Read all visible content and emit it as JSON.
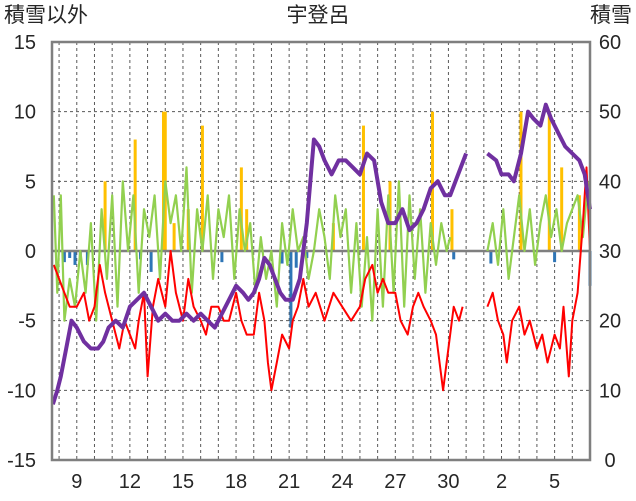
{
  "chart_data": {
    "type": "line",
    "title": "宇登呂",
    "left_axis_label": "積雪以外",
    "right_axis_label": "積雪",
    "left_ylim": [
      -15,
      15
    ],
    "left_ticks": [
      "15",
      "10",
      "5",
      "0",
      "-5",
      "-10",
      "-15"
    ],
    "right_ylim": [
      0,
      60
    ],
    "right_ticks": [
      "60",
      "50",
      "40",
      "30",
      "20",
      "10",
      "0"
    ],
    "x_ticks": [
      "9",
      "12",
      "15",
      "18",
      "21",
      "24",
      "27",
      "30",
      "2",
      "5"
    ],
    "x_tick_days": [
      9,
      12,
      15,
      18,
      21,
      24,
      27,
      30,
      33,
      36
    ],
    "xlim": [
      7.6,
      38.0
    ],
    "grid": {
      "vertical_dashed_every_day": true,
      "horizontal_dashed_every": 5
    },
    "colors": {
      "snow_depth": "#7030a0",
      "temperature_red": "#ff0000",
      "green_series": "#92d050",
      "orange_bars": "#ffc000",
      "blue_bars": "#2e75b6",
      "axis": "#7f7f7f"
    },
    "snow_depth": [
      [
        7.65,
        8
      ],
      [
        7.9,
        10
      ],
      [
        8.1,
        12
      ],
      [
        8.4,
        16
      ],
      [
        8.7,
        20
      ],
      [
        9.0,
        19
      ],
      [
        9.4,
        17
      ],
      [
        9.8,
        16
      ],
      [
        10.2,
        16
      ],
      [
        10.5,
        17
      ],
      [
        10.8,
        19
      ],
      [
        11.2,
        20
      ],
      [
        11.6,
        19
      ],
      [
        12.0,
        22
      ],
      [
        12.4,
        23
      ],
      [
        12.8,
        24
      ],
      [
        13.2,
        22
      ],
      [
        13.6,
        20
      ],
      [
        14.0,
        21
      ],
      [
        14.4,
        20
      ],
      [
        14.8,
        20
      ],
      [
        15.2,
        21
      ],
      [
        15.6,
        20
      ],
      [
        16.0,
        21
      ],
      [
        16.4,
        20
      ],
      [
        16.8,
        19
      ],
      [
        17.2,
        21
      ],
      [
        17.6,
        23
      ],
      [
        18.0,
        25
      ],
      [
        18.4,
        24
      ],
      [
        18.7,
        23
      ],
      [
        19.0,
        24
      ],
      [
        19.3,
        26
      ],
      [
        19.6,
        29
      ],
      [
        19.9,
        28
      ],
      [
        20.2,
        26
      ],
      [
        20.5,
        24
      ],
      [
        20.8,
        23
      ],
      [
        21.2,
        23
      ],
      [
        21.6,
        26
      ],
      [
        22.0,
        34
      ],
      [
        22.4,
        46
      ],
      [
        22.7,
        45
      ],
      [
        23.0,
        43
      ],
      [
        23.4,
        41
      ],
      [
        23.8,
        43
      ],
      [
        24.2,
        43
      ],
      [
        24.6,
        42
      ],
      [
        25.0,
        41
      ],
      [
        25.4,
        44
      ],
      [
        25.8,
        43
      ],
      [
        26.2,
        37
      ],
      [
        26.6,
        34
      ],
      [
        27.0,
        34
      ],
      [
        27.4,
        36
      ],
      [
        27.8,
        33
      ],
      [
        28.2,
        34
      ],
      [
        28.6,
        36
      ],
      [
        29.0,
        39
      ],
      [
        29.4,
        40
      ],
      [
        29.8,
        38
      ],
      [
        30.1,
        38
      ],
      [
        30.4,
        40
      ],
      [
        30.7,
        42
      ],
      [
        31.0,
        44
      ],
      null,
      [
        32.2,
        44
      ],
      [
        32.7,
        43
      ],
      [
        33.0,
        41
      ],
      [
        33.4,
        41
      ],
      [
        33.7,
        40
      ],
      [
        34.1,
        44
      ],
      [
        34.5,
        50
      ],
      [
        34.8,
        49
      ],
      [
        35.2,
        48
      ],
      [
        35.5,
        51
      ],
      [
        35.8,
        49
      ],
      [
        36.2,
        47
      ],
      [
        36.6,
        45
      ],
      [
        37.0,
        44
      ],
      [
        37.4,
        43
      ],
      [
        37.7,
        41
      ],
      [
        38.0,
        36
      ]
    ],
    "temperature_red": [
      [
        7.7,
        -1
      ],
      [
        8.0,
        -2
      ],
      [
        8.3,
        -3
      ],
      [
        8.6,
        -4
      ],
      [
        9.0,
        -4
      ],
      [
        9.4,
        -3
      ],
      [
        9.7,
        -5
      ],
      [
        10.0,
        -4
      ],
      [
        10.3,
        -1
      ],
      [
        10.6,
        -3
      ],
      [
        11.0,
        -5
      ],
      [
        11.4,
        -7
      ],
      [
        11.7,
        -5
      ],
      [
        12.0,
        -6
      ],
      [
        12.3,
        -7
      ],
      [
        12.5,
        -5
      ],
      [
        12.8,
        -3
      ],
      [
        13.0,
        -9
      ],
      [
        13.3,
        -4
      ],
      [
        13.6,
        -2
      ],
      [
        14.0,
        -4
      ],
      [
        14.3,
        0
      ],
      [
        14.6,
        -3
      ],
      [
        15.0,
        -5
      ],
      [
        15.3,
        -2
      ],
      [
        15.6,
        -4
      ],
      [
        16.0,
        -5
      ],
      [
        16.3,
        -6
      ],
      [
        16.6,
        -4
      ],
      [
        17.0,
        -4
      ],
      [
        17.3,
        -5
      ],
      [
        17.6,
        -5
      ],
      [
        18.0,
        -3
      ],
      [
        18.3,
        -5
      ],
      [
        18.6,
        -6
      ],
      [
        19.0,
        -6
      ],
      [
        19.3,
        -3
      ],
      [
        19.6,
        -5
      ],
      [
        19.8,
        -8
      ],
      [
        20.0,
        -10
      ],
      [
        20.3,
        -8
      ],
      [
        20.6,
        -6
      ],
      [
        21.0,
        -7
      ],
      [
        21.2,
        -5
      ],
      [
        21.5,
        -4
      ],
      [
        21.8,
        -2
      ],
      [
        22.1,
        -4
      ],
      [
        22.5,
        -3
      ],
      [
        23.0,
        -5
      ],
      [
        23.5,
        -3
      ],
      [
        24.0,
        -4
      ],
      [
        24.5,
        -5
      ],
      [
        25.0,
        -4
      ],
      [
        25.3,
        -2
      ],
      [
        25.7,
        -1
      ],
      [
        26.0,
        -3
      ],
      [
        26.3,
        -2
      ],
      [
        26.6,
        -3
      ],
      [
        27.0,
        -3
      ],
      [
        27.3,
        -5
      ],
      [
        27.7,
        -6
      ],
      [
        28.0,
        -4
      ],
      [
        28.3,
        -3
      ],
      [
        28.6,
        -4
      ],
      [
        29.0,
        -5
      ],
      [
        29.3,
        -6
      ],
      [
        29.7,
        -10
      ],
      [
        30.0,
        -7
      ],
      [
        30.3,
        -4
      ],
      [
        30.6,
        -5
      ],
      [
        30.8,
        -4
      ],
      null,
      [
        32.2,
        -4
      ],
      [
        32.5,
        -3
      ],
      [
        32.8,
        -5
      ],
      [
        33.1,
        -6
      ],
      [
        33.3,
        -8
      ],
      [
        33.6,
        -5
      ],
      [
        34.0,
        -4
      ],
      [
        34.3,
        -6
      ],
      [
        34.6,
        -5
      ],
      [
        35.0,
        -7
      ],
      [
        35.3,
        -6
      ],
      [
        35.6,
        -8
      ],
      [
        36.0,
        -6
      ],
      [
        36.3,
        -7
      ],
      [
        36.5,
        -4
      ],
      [
        36.8,
        -9
      ],
      [
        37.0,
        -5
      ],
      [
        37.3,
        -3
      ],
      [
        37.6,
        2
      ],
      [
        37.8,
        6
      ],
      [
        38.0,
        0
      ]
    ],
    "green_series": [
      [
        7.7,
        4
      ],
      [
        7.9,
        -3
      ],
      [
        8.1,
        4
      ],
      [
        8.3,
        -5
      ],
      [
        8.6,
        -2
      ],
      [
        8.9,
        -4
      ],
      [
        9.2,
        0
      ],
      [
        9.5,
        -3
      ],
      [
        9.8,
        2
      ],
      [
        10.1,
        -5
      ],
      [
        10.4,
        3
      ],
      [
        10.7,
        -2
      ],
      [
        11.0,
        4
      ],
      [
        11.3,
        -4
      ],
      [
        11.6,
        5
      ],
      [
        11.9,
        0
      ],
      [
        12.2,
        4
      ],
      [
        12.5,
        -3
      ],
      [
        12.8,
        3
      ],
      [
        13.1,
        1
      ],
      [
        13.4,
        4
      ],
      [
        13.7,
        -2
      ],
      [
        14.0,
        5
      ],
      [
        14.3,
        2
      ],
      [
        14.6,
        4
      ],
      [
        14.9,
        0
      ],
      [
        15.2,
        6
      ],
      [
        15.5,
        -3
      ],
      [
        15.8,
        3
      ],
      [
        16.1,
        0
      ],
      [
        16.4,
        4
      ],
      [
        16.7,
        -2
      ],
      [
        17.0,
        3
      ],
      [
        17.3,
        1
      ],
      [
        17.6,
        4
      ],
      [
        17.9,
        -2
      ],
      [
        18.2,
        3
      ],
      [
        18.5,
        0
      ],
      [
        18.8,
        2
      ],
      [
        19.1,
        -3
      ],
      [
        19.4,
        1
      ],
      [
        19.7,
        -2
      ],
      [
        20.0,
        0
      ],
      [
        20.3,
        -4
      ],
      [
        20.6,
        2
      ],
      [
        20.9,
        -1
      ],
      [
        21.2,
        3
      ],
      [
        21.5,
        0
      ],
      [
        21.8,
        1
      ],
      [
        22.1,
        -2
      ],
      [
        22.4,
        0
      ],
      [
        22.7,
        3
      ],
      [
        23.0,
        1
      ],
      [
        23.3,
        -2
      ],
      [
        23.6,
        4
      ],
      [
        23.9,
        1
      ],
      [
        24.2,
        3
      ],
      [
        24.5,
        -3
      ],
      [
        24.8,
        2
      ],
      [
        25.1,
        -4
      ],
      [
        25.4,
        1
      ],
      [
        25.7,
        -5
      ],
      [
        26.0,
        3
      ],
      [
        26.3,
        -4
      ],
      [
        26.6,
        4
      ],
      [
        26.9,
        -3
      ],
      [
        27.2,
        5
      ],
      [
        27.5,
        -4
      ],
      [
        27.8,
        4
      ],
      [
        28.1,
        -2
      ],
      [
        28.4,
        3
      ],
      [
        28.7,
        -3
      ],
      [
        29.0,
        2
      ],
      [
        29.3,
        -1
      ],
      [
        29.6,
        2
      ],
      [
        29.9,
        0
      ],
      [
        30.1,
        1
      ],
      null,
      [
        32.2,
        0
      ],
      [
        32.5,
        2
      ],
      [
        32.8,
        -1
      ],
      [
        33.1,
        3
      ],
      [
        33.4,
        -2
      ],
      [
        33.7,
        1
      ],
      [
        34.0,
        4
      ],
      [
        34.3,
        0
      ],
      [
        34.6,
        3
      ],
      [
        34.9,
        -1
      ],
      [
        35.2,
        2
      ],
      [
        35.5,
        4
      ],
      [
        35.8,
        1
      ],
      [
        36.1,
        3
      ],
      [
        36.4,
        0
      ],
      [
        36.7,
        2
      ],
      [
        37.0,
        3
      ],
      [
        37.3,
        4
      ],
      [
        37.6,
        1
      ],
      [
        37.9,
        5
      ]
    ],
    "orange_bars": [
      [
        10.6,
        5
      ],
      [
        12.3,
        8
      ],
      [
        13.9,
        10
      ],
      [
        14.0,
        10
      ],
      [
        14.5,
        2
      ],
      [
        15.3,
        3
      ],
      [
        16.1,
        9
      ],
      [
        18.3,
        6
      ],
      [
        18.6,
        3
      ],
      [
        23.5,
        2
      ],
      [
        25.2,
        9
      ],
      [
        26.7,
        5
      ],
      [
        29.1,
        10
      ],
      [
        30.2,
        3
      ],
      [
        34.1,
        10
      ],
      [
        35.7,
        10
      ],
      [
        36.4,
        6
      ],
      [
        37.4,
        4
      ]
    ],
    "blue_bars": [
      [
        8.3,
        -0.8
      ],
      [
        8.6,
        -0.5
      ],
      [
        8.9,
        -1
      ],
      [
        9.2,
        -0.7
      ],
      [
        9.6,
        -1
      ],
      [
        12.6,
        -0.6
      ],
      [
        13.2,
        -1.5
      ],
      [
        17.2,
        -0.8
      ],
      [
        20.6,
        -0.9
      ],
      [
        21.1,
        -5.5
      ],
      [
        21.4,
        -1.2
      ],
      [
        22.0,
        -0.5
      ],
      [
        30.3,
        -0.6
      ],
      [
        32.4,
        -0.9
      ],
      [
        36.0,
        -0.8
      ],
      [
        38.0,
        -2.5
      ]
    ]
  }
}
